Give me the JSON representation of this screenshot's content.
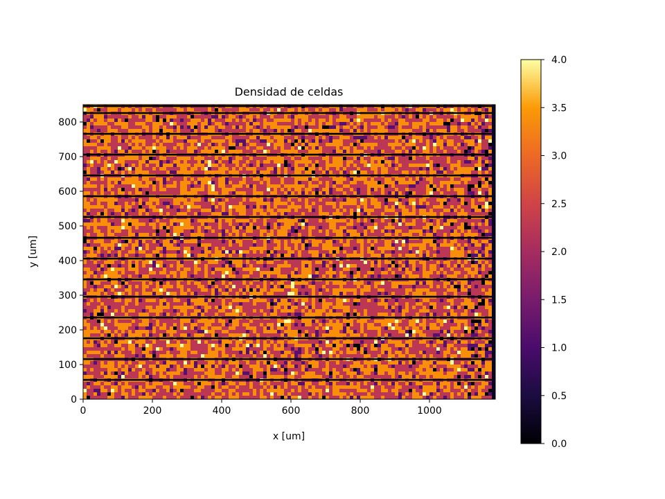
{
  "chart_data": {
    "type": "heatmap",
    "title": "Densidad de celdas",
    "xlabel": "x [um]",
    "ylabel": "y [um]",
    "xlim": [
      0,
      1190
    ],
    "ylim": [
      0,
      850
    ],
    "x_ticks": [
      0,
      200,
      400,
      600,
      800,
      1000
    ],
    "y_ticks": [
      0,
      100,
      200,
      300,
      400,
      500,
      600,
      700,
      800
    ],
    "colormap": "inferno",
    "colorbar": {
      "range": [
        0.0,
        4.0
      ],
      "ticks": [
        "0.0",
        "0.5",
        "1.0",
        "1.5",
        "2.0",
        "2.5",
        "3.0",
        "3.5",
        "4.0"
      ]
    },
    "dark_row_lines_y": [
      56,
      116,
      176,
      236,
      296,
      346,
      406,
      466,
      526,
      586,
      646,
      706,
      766,
      826,
      846
    ],
    "value_distribution": {
      "0": 0.02,
      "1": 0.07,
      "2": 0.46,
      "3": 0.43,
      "4": 0.02
    },
    "grid": false
  }
}
